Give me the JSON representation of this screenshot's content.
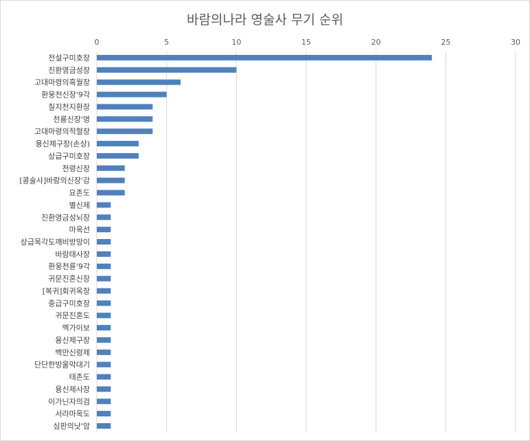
{
  "chart_data": {
    "type": "bar",
    "orientation": "horizontal",
    "title": "바람의나라 영술사 무기 순위",
    "xlim": [
      0,
      30
    ],
    "x_ticks": [
      0,
      5,
      10,
      15,
      20,
      25,
      30
    ],
    "x_axis_position": "top",
    "grid": true,
    "color": "#4f81bd",
    "categories": [
      "전설구미호장",
      "진환영금성장",
      "고대마령의흑월장",
      "환웅천신장'9각",
      "칠지천지환장",
      "천룡신장'영",
      "고대마령의적혈장",
      "용신제구장(손상)",
      "상급구미호장",
      "천령신장",
      "[콩술사]바람의신장'강",
      "요존도",
      "별신제",
      "진환영금성뇌장",
      "마옥선",
      "상급목각도깨비방망이",
      "바람태사장",
      "환웅천륜'9각",
      "귀문진혼신장",
      "[복귀]회귀옥장",
      "중급구미호장",
      "귀문진혼도",
      "멕가이보",
      "용신제구장",
      "백만신령제",
      "단단한방울막대기",
      "태존도",
      "용신제사장",
      "이가닌자의검",
      "서라마옥도",
      "심판의낫'암"
    ],
    "values": [
      24,
      10,
      6,
      5,
      4,
      4,
      4,
      3,
      3,
      2,
      2,
      2,
      1,
      1,
      1,
      1,
      1,
      1,
      1,
      1,
      1,
      1,
      1,
      1,
      1,
      1,
      1,
      1,
      1,
      1,
      1
    ]
  }
}
